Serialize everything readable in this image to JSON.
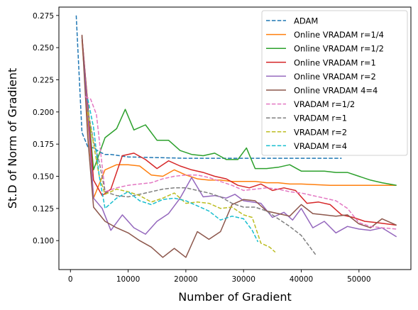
{
  "chart_data": {
    "type": "line",
    "title": "",
    "xlabel": "Number of Gradient",
    "ylabel": "St.D of Norm of Gradient",
    "xlim": [
      -2000,
      59000
    ],
    "ylim": [
      0.0775,
      0.2815
    ],
    "xticks": [
      0,
      10000,
      20000,
      30000,
      40000,
      50000
    ],
    "yticks": [
      0.1,
      0.125,
      0.15,
      0.175,
      0.2,
      0.225,
      0.25,
      0.275
    ],
    "xtick_labels": [
      "0",
      "10000",
      "20000",
      "30000",
      "40000",
      "50000"
    ],
    "ytick_labels": [
      "0.100",
      "0.125",
      "0.150",
      "0.175",
      "0.200",
      "0.225",
      "0.250",
      "0.275"
    ],
    "grid": false,
    "legend_position": "top-right",
    "series": [
      {
        "name": "ADAM",
        "color": "#1f77b4",
        "dash": "dashed",
        "x": [
          1000,
          2000,
          3000,
          4000,
          5000,
          6000,
          7000,
          10000,
          20000,
          30000,
          40000,
          47000
        ],
        "y": [
          0.275,
          0.184,
          0.173,
          0.172,
          0.169,
          0.167,
          0.167,
          0.165,
          0.164,
          0.164,
          0.164,
          0.164
        ]
      },
      {
        "name": "Online VRADAM r=1/4",
        "color": "#ff7f0e",
        "dash": "solid",
        "x": [
          2000,
          4000,
          6000,
          8000,
          10000,
          12000,
          14000,
          16000,
          18000,
          20000,
          22000,
          24000,
          26000,
          28000,
          30000,
          32000,
          34000,
          36000,
          38000,
          40000,
          45000,
          50000,
          56500
        ],
        "y": [
          0.256,
          0.133,
          0.155,
          0.159,
          0.159,
          0.158,
          0.151,
          0.15,
          0.155,
          0.151,
          0.148,
          0.147,
          0.147,
          0.146,
          0.146,
          0.146,
          0.145,
          0.145,
          0.144,
          0.144,
          0.143,
          0.143,
          0.143
        ]
      },
      {
        "name": "Online VRADAM r=1/2",
        "color": "#2ca02c",
        "dash": "solid",
        "x": [
          2000,
          4000,
          6000,
          8000,
          9500,
          11000,
          13000,
          15000,
          17000,
          19000,
          21000,
          23000,
          25000,
          27000,
          29000,
          30500,
          32000,
          34000,
          36000,
          38000,
          40000,
          42000,
          44000,
          46000,
          48000,
          50000,
          52000,
          54000,
          56500
        ],
        "y": [
          0.258,
          0.155,
          0.18,
          0.187,
          0.202,
          0.186,
          0.19,
          0.178,
          0.178,
          0.17,
          0.167,
          0.166,
          0.168,
          0.163,
          0.163,
          0.172,
          0.156,
          0.156,
          0.157,
          0.159,
          0.154,
          0.154,
          0.154,
          0.153,
          0.153,
          0.15,
          0.147,
          0.145,
          0.143
        ]
      },
      {
        "name": "Online VRADAM r=1",
        "color": "#d62728",
        "dash": "solid",
        "x": [
          2000,
          3000,
          4000,
          5500,
          7000,
          9000,
          11000,
          13000,
          15000,
          17000,
          19000,
          21000,
          23000,
          25000,
          27000,
          29000,
          31000,
          33000,
          35000,
          37000,
          39000,
          41000,
          43000,
          45000,
          47000,
          49000,
          51000,
          53000,
          56500
        ],
        "y": [
          0.259,
          0.205,
          0.147,
          0.135,
          0.14,
          0.166,
          0.168,
          0.163,
          0.156,
          0.162,
          0.158,
          0.155,
          0.153,
          0.15,
          0.148,
          0.143,
          0.141,
          0.144,
          0.139,
          0.141,
          0.139,
          0.129,
          0.13,
          0.128,
          0.12,
          0.118,
          0.115,
          0.114,
          0.112
        ]
      },
      {
        "name": "Online VRADAM r=2",
        "color": "#9467bd",
        "dash": "solid",
        "x": [
          2000,
          3000,
          4000,
          5500,
          7000,
          9000,
          11000,
          13000,
          15000,
          17000,
          19000,
          21000,
          23000,
          25000,
          27000,
          28500,
          30000,
          31500,
          33000,
          35000,
          37000,
          38500,
          40000,
          42000,
          44000,
          46000,
          48000,
          50000,
          52000,
          54000,
          56500
        ],
        "y": [
          0.258,
          0.2,
          0.133,
          0.125,
          0.108,
          0.12,
          0.11,
          0.105,
          0.115,
          0.121,
          0.133,
          0.149,
          0.134,
          0.135,
          0.133,
          0.136,
          0.131,
          0.13,
          0.129,
          0.118,
          0.122,
          0.116,
          0.125,
          0.11,
          0.115,
          0.106,
          0.111,
          0.109,
          0.108,
          0.11,
          0.103
        ]
      },
      {
        "name": "Online VRADAM 4=4",
        "color": "#8c564b",
        "dash": "solid",
        "x": [
          2000,
          3000,
          4000,
          6000,
          8000,
          10000,
          12000,
          14000,
          16000,
          18000,
          20000,
          22000,
          24000,
          26000,
          28000,
          30000,
          32000,
          34000,
          36000,
          38000,
          40000,
          42000,
          44000,
          46000,
          48000,
          50000,
          52000,
          54000,
          56500
        ],
        "y": [
          0.26,
          0.18,
          0.126,
          0.115,
          0.11,
          0.106,
          0.1,
          0.095,
          0.087,
          0.094,
          0.087,
          0.107,
          0.101,
          0.107,
          0.128,
          0.132,
          0.131,
          0.123,
          0.121,
          0.119,
          0.128,
          0.121,
          0.12,
          0.119,
          0.12,
          0.113,
          0.11,
          0.117,
          0.112
        ]
      },
      {
        "name": "VRADAM r=1/2",
        "color": "#e377c2",
        "dash": "dashed",
        "x": [
          2500,
          3500,
          4500,
          6000,
          8000,
          10000,
          12000,
          14000,
          16000,
          18000,
          20000,
          22000,
          24000,
          26000,
          28000,
          30000,
          32000,
          34000,
          36000,
          38000,
          40000,
          42000,
          44000,
          46000,
          48000,
          50000,
          52000,
          54000,
          56500
        ],
        "y": [
          0.212,
          0.21,
          0.198,
          0.138,
          0.141,
          0.143,
          0.144,
          0.145,
          0.148,
          0.15,
          0.151,
          0.151,
          0.149,
          0.146,
          0.143,
          0.139,
          0.14,
          0.141,
          0.14,
          0.138,
          0.137,
          0.135,
          0.133,
          0.131,
          0.125,
          0.114,
          0.111,
          0.11,
          0.109
        ]
      },
      {
        "name": "VRADAM r=1",
        "color": "#7f7f7f",
        "dash": "dashed",
        "x": [
          3000,
          4000,
          5000,
          6000,
          8000,
          10000,
          12000,
          14000,
          16000,
          18000,
          20000,
          22000,
          24000,
          26000,
          28000,
          30000,
          32000,
          34000,
          36000,
          38000,
          40000,
          42500
        ],
        "y": [
          0.202,
          0.177,
          0.161,
          0.138,
          0.135,
          0.134,
          0.136,
          0.138,
          0.14,
          0.141,
          0.141,
          0.139,
          0.137,
          0.134,
          0.129,
          0.126,
          0.126,
          0.123,
          0.117,
          0.111,
          0.104,
          0.089
        ]
      },
      {
        "name": "VRADAM r=2",
        "color": "#bcbd22",
        "dash": "dashed",
        "x": [
          3000,
          4000,
          5000,
          6000,
          8000,
          10000,
          12000,
          14000,
          16000,
          18000,
          20000,
          22000,
          24000,
          26000,
          28000,
          30000,
          31500,
          33000,
          34500,
          35500
        ],
        "y": [
          0.2,
          0.175,
          0.15,
          0.136,
          0.14,
          0.138,
          0.135,
          0.13,
          0.133,
          0.137,
          0.129,
          0.13,
          0.129,
          0.125,
          0.126,
          0.12,
          0.118,
          0.098,
          0.095,
          0.091
        ]
      },
      {
        "name": "VRADAM r=4",
        "color": "#17becf",
        "dash": "dashed",
        "x": [
          3000,
          4000,
          5000,
          6000,
          8000,
          10000,
          12000,
          14000,
          16000,
          18000,
          20000,
          22000,
          24000,
          26000,
          28000,
          30000,
          31500,
          32500
        ],
        "y": [
          0.21,
          0.188,
          0.15,
          0.125,
          0.133,
          0.138,
          0.131,
          0.128,
          0.132,
          0.133,
          0.131,
          0.127,
          0.123,
          0.116,
          0.119,
          0.117,
          0.108,
          0.099
        ]
      }
    ]
  }
}
